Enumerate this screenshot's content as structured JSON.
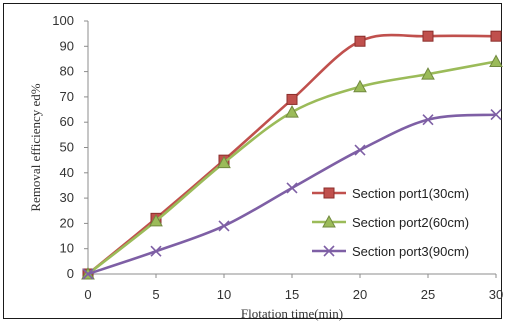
{
  "chart_data": {
    "type": "line",
    "xlabel": "Flotation time(min)",
    "ylabel": "Removal efficiency ed%",
    "x": [
      0,
      5,
      10,
      15,
      20,
      25,
      30
    ],
    "xlim": [
      0,
      30
    ],
    "ylim": [
      0,
      100
    ],
    "xticks": [
      "0",
      "5",
      "10",
      "15",
      "20",
      "25",
      "30"
    ],
    "yticks": [
      "0",
      "10",
      "20",
      "30",
      "40",
      "50",
      "60",
      "70",
      "80",
      "90",
      "100"
    ],
    "grid": false,
    "legend_position": "right",
    "series": [
      {
        "name": "Section port1(30cm)",
        "values": [
          0,
          22,
          45,
          69,
          92,
          94,
          94
        ],
        "color": "#c0504d",
        "marker": "square"
      },
      {
        "name": "Section port2(60cm)",
        "values": [
          0,
          21,
          44,
          64,
          74,
          79,
          84
        ],
        "color": "#9bbb59",
        "marker": "triangle"
      },
      {
        "name": "Section port3(90cm)",
        "values": [
          0,
          9,
          19,
          34,
          49,
          61,
          63
        ],
        "color": "#7e5fa5",
        "marker": "x"
      }
    ]
  }
}
